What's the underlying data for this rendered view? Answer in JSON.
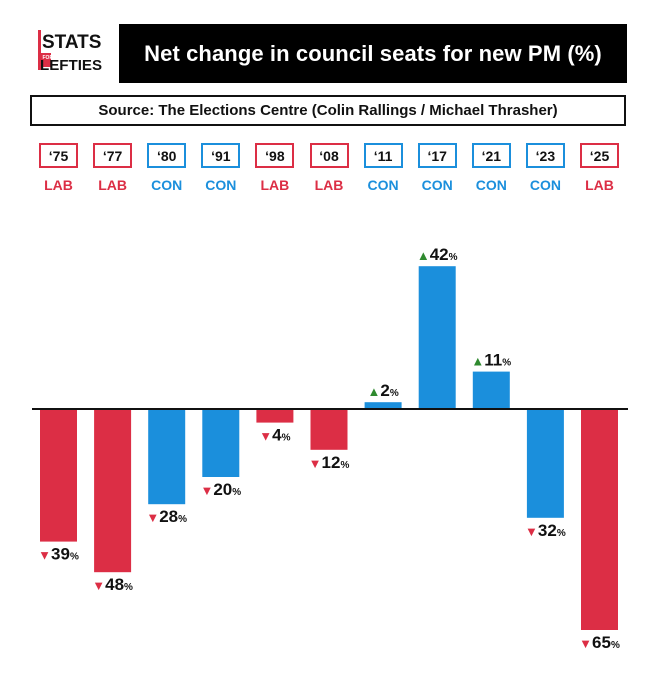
{
  "logo": {
    "line1": "STATS",
    "small": "FOR",
    "line2": "LEFTIES"
  },
  "title": "Net change in council seats for new PM (%)",
  "source": "Source: The Elections Centre (Colin Rallings / Michael Thrasher)",
  "colors": {
    "LAB": "#dc2e45",
    "CON": "#1b8fdc",
    "up_arrow": "#2f8a2f",
    "down_arrow": "#dc2e45",
    "axis": "#111111"
  },
  "chart_data": {
    "type": "bar",
    "title": "Net change in council seats for new PM (%)",
    "categories": [
      "‘75",
      "‘77",
      "‘80",
      "‘91",
      "‘98",
      "‘08",
      "‘11",
      "‘17",
      "‘21",
      "‘23",
      "‘25"
    ],
    "parties": [
      "LAB",
      "LAB",
      "CON",
      "CON",
      "LAB",
      "LAB",
      "CON",
      "CON",
      "CON",
      "CON",
      "LAB"
    ],
    "values": [
      -39,
      -48,
      -28,
      -20,
      -4,
      -12,
      2,
      42,
      11,
      -32,
      -65
    ],
    "data_labels": [
      "39",
      "48",
      "28",
      "20",
      "4",
      "12",
      "2",
      "42",
      "11",
      "32",
      "65"
    ],
    "unit": "%",
    "up_symbol": "▲",
    "down_symbol": "▼",
    "ylim": [
      -65,
      42
    ],
    "grid": false,
    "legend": "none"
  }
}
